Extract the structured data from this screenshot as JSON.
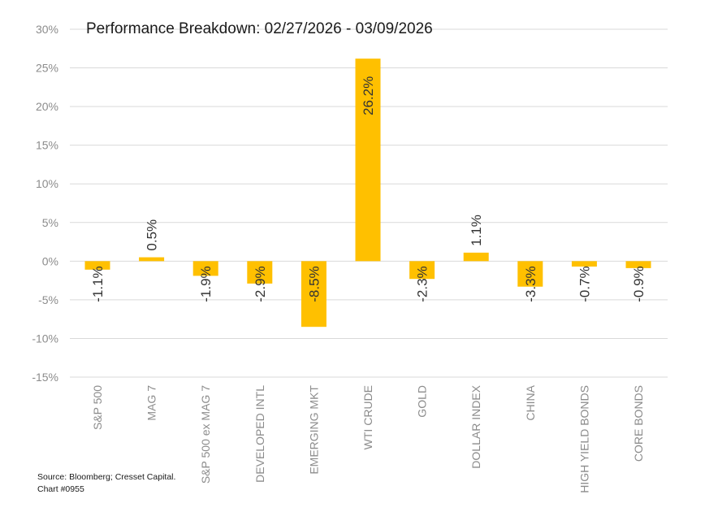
{
  "chart_data": {
    "type": "bar",
    "title": "Performance Breakdown: 02/27/2026 - 03/09/2026",
    "categories": [
      "S&P 500",
      "MAG 7",
      "S&P 500 ex MAG 7",
      "DEVELOPED INTL",
      "EMERGING MKT",
      "WTI CRUDE",
      "GOLD",
      "DOLLAR INDEX",
      "CHINA",
      "HIGH YIELD BONDS",
      "CORE BONDS"
    ],
    "values": [
      -1.1,
      0.5,
      -1.9,
      -2.9,
      -8.5,
      26.2,
      -2.3,
      1.1,
      -3.3,
      -0.7,
      -0.9
    ],
    "data_labels": [
      "-1.1%",
      "0.5%",
      "-1.9%",
      "-2.9%",
      "-8.5%",
      "26.2%",
      "-2.3%",
      "1.1%",
      "-3.3%",
      "-0.7%",
      "-0.9%"
    ],
    "ylim": [
      -15,
      30
    ],
    "yticks": [
      30,
      25,
      20,
      15,
      10,
      5,
      0,
      -5,
      -10,
      -15
    ],
    "ytick_labels": [
      "30%",
      "25%",
      "20%",
      "15%",
      "10%",
      "5%",
      "0%",
      "-5%",
      "-10%",
      "-15%"
    ],
    "xlabel": "",
    "ylabel": "",
    "grid": true,
    "bar_color": "#FFC000"
  },
  "footer": {
    "source": "Source: Bloomberg; Cresset Capital.",
    "chart_id": "Chart #0955"
  }
}
